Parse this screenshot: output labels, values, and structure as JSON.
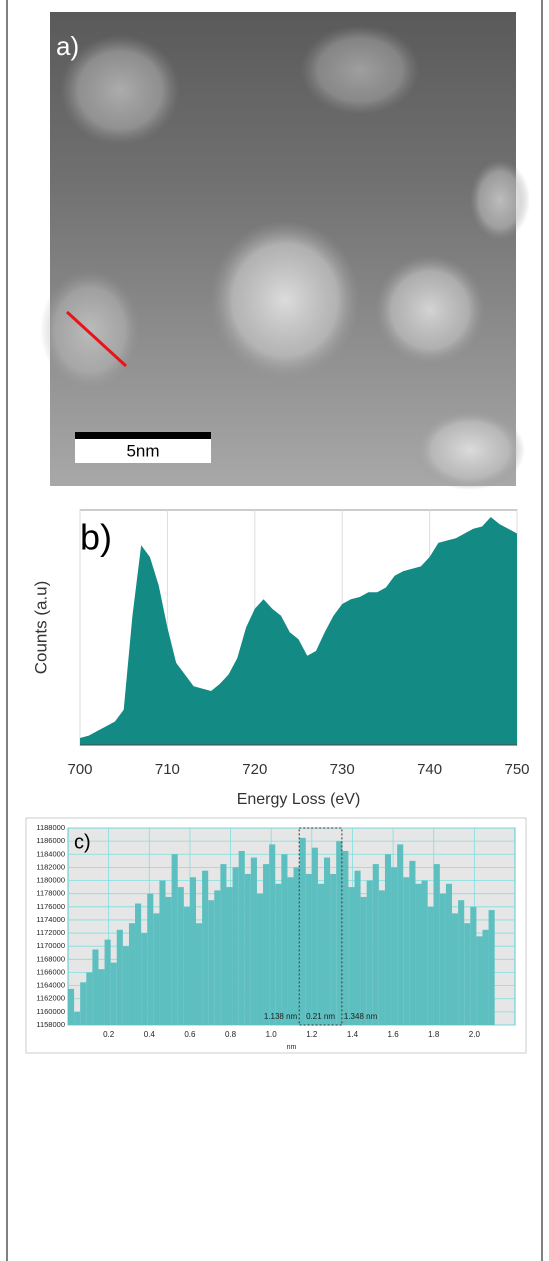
{
  "image": {
    "label": "a)",
    "scale_bar": "5nm"
  },
  "chart_data": [
    {
      "type": "area",
      "label": "b)",
      "x_label": "Energy Loss (eV)",
      "y_label": "Counts (a.u)",
      "color": "#138a84",
      "x": [
        700,
        701,
        702,
        703,
        704,
        705,
        706,
        707,
        708,
        709,
        710,
        711,
        712,
        713,
        714,
        715,
        716,
        717,
        718,
        719,
        720,
        721,
        722,
        723,
        724,
        725,
        726,
        727,
        728,
        729,
        730,
        731,
        732,
        733,
        734,
        735,
        736,
        737,
        738,
        739,
        740,
        741,
        742,
        743,
        744,
        745,
        746,
        747,
        748,
        749,
        750
      ],
      "values": [
        3,
        4,
        6,
        8,
        10,
        15,
        55,
        85,
        80,
        68,
        50,
        35,
        30,
        25,
        24,
        23,
        26,
        30,
        37,
        50,
        58,
        62,
        58,
        55,
        48,
        45,
        38,
        40,
        48,
        55,
        60,
        62,
        63,
        65,
        65,
        67,
        72,
        74,
        75,
        76,
        80,
        86,
        87,
        88,
        90,
        92,
        93,
        97,
        94,
        92,
        90
      ],
      "xlim": [
        700,
        750
      ],
      "xticks": [
        700,
        710,
        720,
        730,
        740,
        750
      ],
      "ylim": [
        0,
        100
      ],
      "grid": true
    },
    {
      "type": "histogram",
      "label": "c)",
      "x_label": "nm",
      "color": "#5dbfbf",
      "x": [
        0.0,
        0.03,
        0.06,
        0.09,
        0.12,
        0.15,
        0.18,
        0.21,
        0.24,
        0.27,
        0.3,
        0.33,
        0.36,
        0.39,
        0.42,
        0.45,
        0.48,
        0.51,
        0.54,
        0.57,
        0.6,
        0.63,
        0.66,
        0.69,
        0.72,
        0.75,
        0.78,
        0.81,
        0.84,
        0.87,
        0.9,
        0.93,
        0.96,
        0.99,
        1.02,
        1.05,
        1.08,
        1.11,
        1.14,
        1.17,
        1.2,
        1.23,
        1.26,
        1.29,
        1.32,
        1.35,
        1.38,
        1.41,
        1.44,
        1.47,
        1.5,
        1.53,
        1.56,
        1.59,
        1.62,
        1.65,
        1.68,
        1.71,
        1.74,
        1.77,
        1.8,
        1.83,
        1.86,
        1.89,
        1.92,
        1.95,
        1.98,
        2.01,
        2.04,
        2.07
      ],
      "values": [
        1163500,
        1160000,
        1164500,
        1166000,
        1169500,
        1166500,
        1171000,
        1167500,
        1172500,
        1170000,
        1173500,
        1176500,
        1172000,
        1178000,
        1175000,
        1180000,
        1177500,
        1184000,
        1179000,
        1176000,
        1180500,
        1173500,
        1181500,
        1177000,
        1178500,
        1182500,
        1179000,
        1182000,
        1184500,
        1181000,
        1183500,
        1178000,
        1182500,
        1185500,
        1179500,
        1184000,
        1180500,
        1182000,
        1186500,
        1181000,
        1185000,
        1179500,
        1183500,
        1181000,
        1186000,
        1184500,
        1179000,
        1181500,
        1177500,
        1180000,
        1182500,
        1178500,
        1184000,
        1182000,
        1185500,
        1180500,
        1183000,
        1179500,
        1180000,
        1176000,
        1182500,
        1178000,
        1179500,
        1175000,
        1177000,
        1173500,
        1176000,
        1171500,
        1172500,
        1175500
      ],
      "bin_width": 0.03,
      "xlim": [
        0,
        2.2
      ],
      "xticks": [
        0.2,
        0.4,
        0.6,
        0.8,
        {
          "value": 1,
          "label": "1.0"
        },
        1.2,
        1.4,
        1.6,
        1.8,
        {
          "value": 2,
          "label": "2.0"
        }
      ],
      "ylim": [
        1158000,
        1188000
      ],
      "yticks": [
        1158000,
        1160000,
        1162000,
        1164000,
        1166000,
        1168000,
        1170000,
        1172000,
        1174000,
        1176000,
        1178000,
        1180000,
        1182000,
        1184000,
        1186000,
        1188000
      ],
      "grid": true,
      "selection": [
        1.138,
        1.348
      ],
      "annotations": [
        "1.138 nm",
        "0.21 nm",
        "1.348 nm"
      ]
    }
  ]
}
